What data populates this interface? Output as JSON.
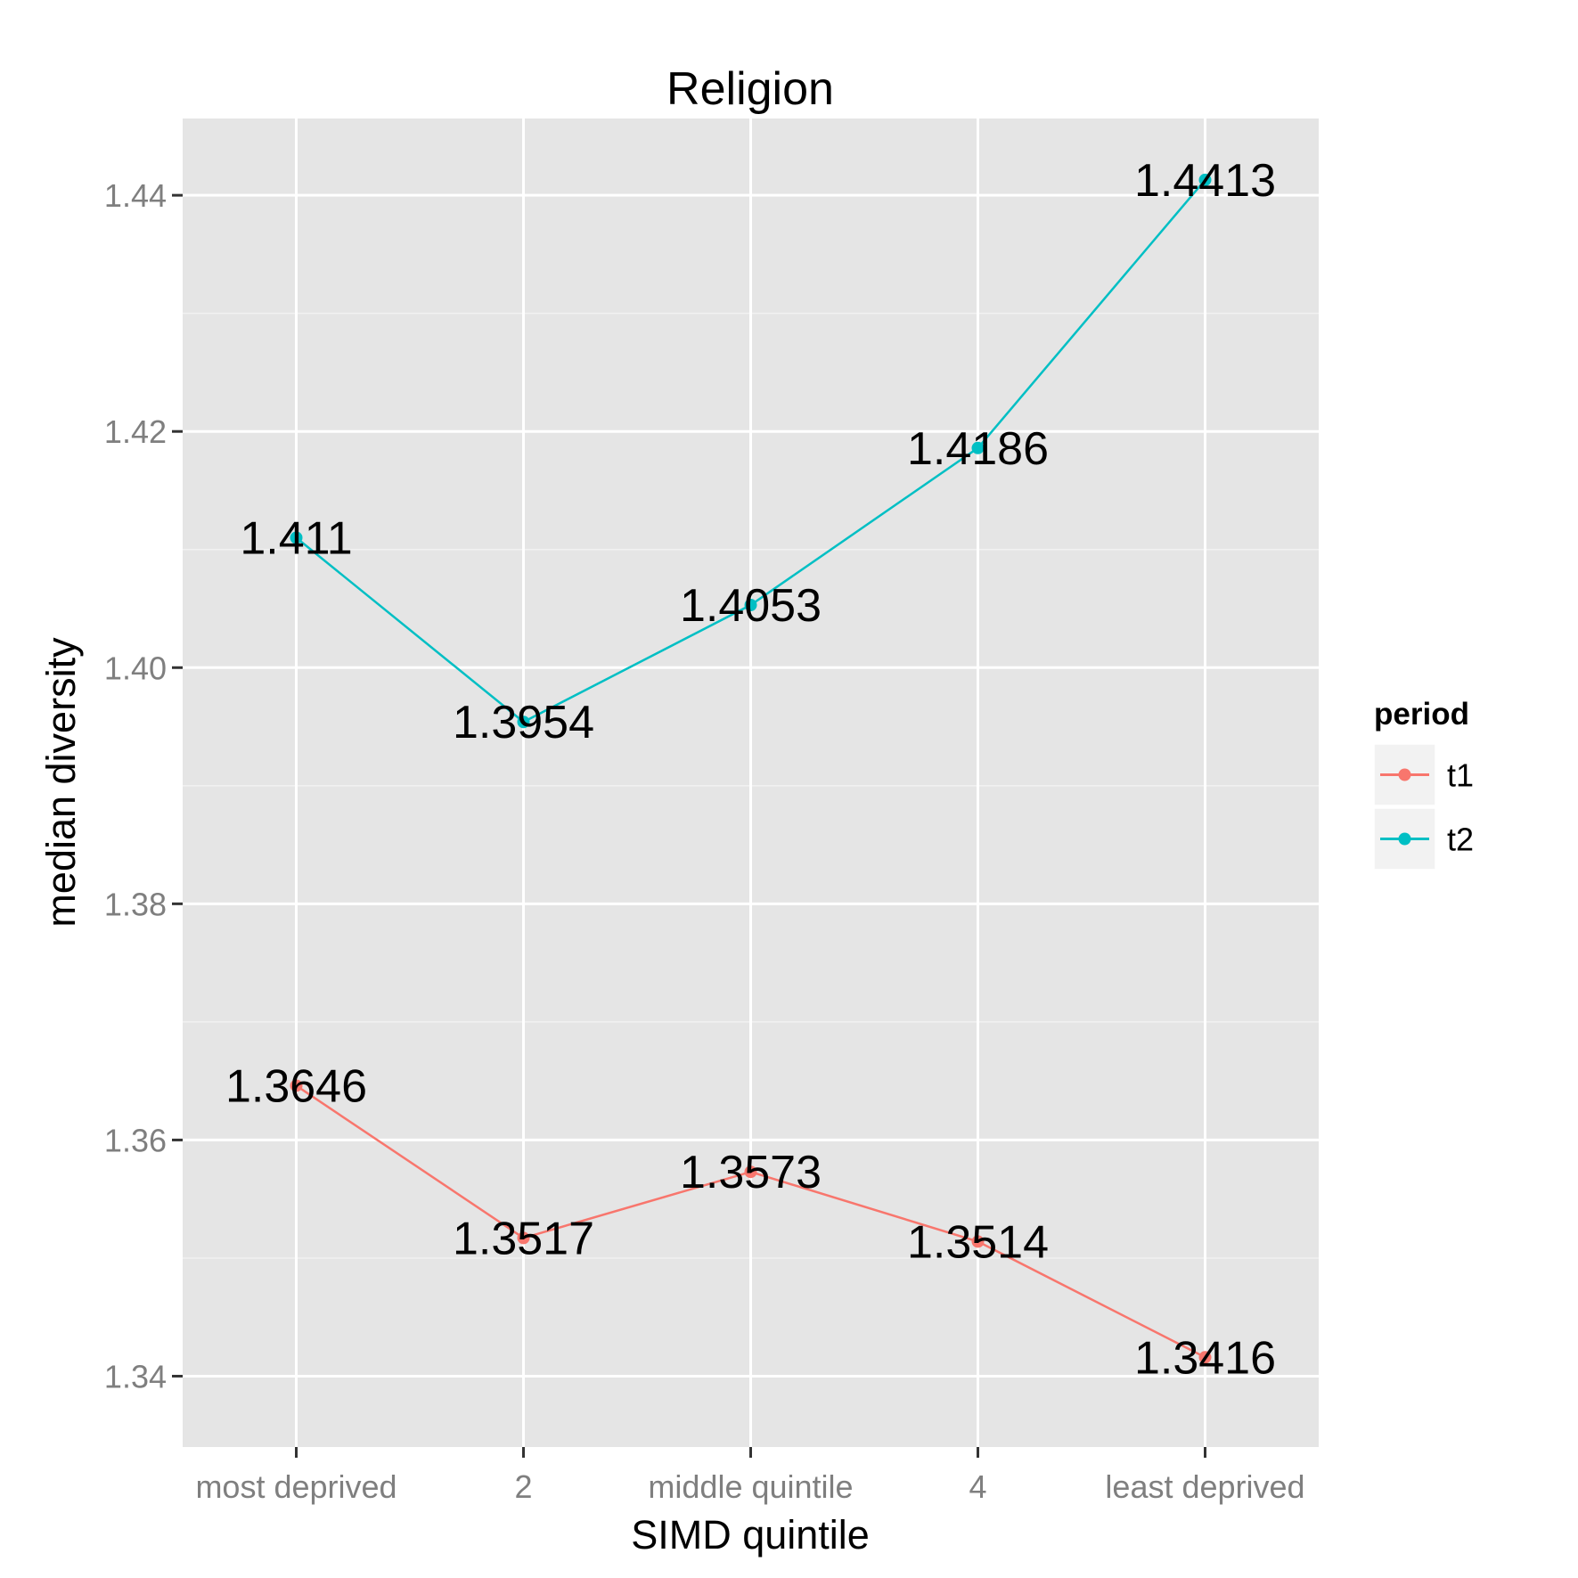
{
  "chart_data": {
    "type": "line",
    "title": "Religion",
    "xlabel": "SIMD quintile",
    "ylabel": "median diversity",
    "categories": [
      "most deprived",
      "2",
      "middle quintile",
      "4",
      "least deprived"
    ],
    "ylim": [
      1.334,
      1.4465
    ],
    "yticks": [
      1.34,
      1.36,
      1.38,
      1.4,
      1.42,
      1.44
    ],
    "ytick_labels": [
      "1.34",
      "1.36",
      "1.38",
      "1.40",
      "1.42",
      "1.44"
    ],
    "grid": true,
    "legend": {
      "title": "period",
      "position": "right"
    },
    "series": [
      {
        "name": "t1",
        "color": "#f8766d",
        "values": [
          1.3646,
          1.3517,
          1.3573,
          1.3514,
          1.3416
        ],
        "labels": [
          "1.3646",
          "1.3517",
          "1.3573",
          "1.3514",
          "1.3416"
        ]
      },
      {
        "name": "t2",
        "color": "#00bfc4",
        "values": [
          1.411,
          1.3954,
          1.4053,
          1.4186,
          1.4413
        ],
        "labels": [
          "1.411",
          "1.3954",
          "1.4053",
          "1.4186",
          "1.4413"
        ]
      }
    ]
  }
}
